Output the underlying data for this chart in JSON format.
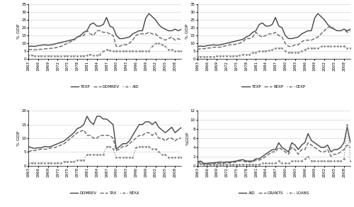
{
  "years": [
    1963,
    1964,
    1965,
    1966,
    1967,
    1968,
    1969,
    1970,
    1971,
    1972,
    1973,
    1974,
    1975,
    1976,
    1977,
    1978,
    1979,
    1980,
    1981,
    1982,
    1983,
    1984,
    1985,
    1986,
    1987,
    1988,
    1989,
    1990,
    1991,
    1992,
    1993,
    1994,
    1995,
    1996,
    1997,
    1998,
    1999,
    2000,
    2001,
    2002,
    2003,
    2004,
    2005,
    2006,
    2007,
    2008,
    2009,
    2010
  ],
  "TEXP": [
    8.0,
    8.2,
    8.0,
    8.5,
    8.8,
    9.0,
    8.8,
    9.0,
    9.5,
    10.0,
    10.5,
    11.0,
    11.5,
    12.0,
    12.5,
    14.0,
    15.0,
    17.0,
    18.0,
    22.0,
    23.0,
    21.0,
    21.0,
    22.0,
    26.5,
    21.0,
    20.0,
    15.0,
    13.0,
    13.0,
    13.5,
    14.0,
    16.0,
    17.0,
    18.0,
    18.0,
    26.0,
    29.0,
    27.0,
    25.0,
    22.0,
    20.0,
    19.0,
    18.0,
    18.0,
    19.0,
    18.0,
    19.0
  ],
  "DOMREV": [
    6.0,
    6.0,
    5.8,
    6.0,
    6.2,
    6.5,
    6.5,
    6.8,
    7.0,
    7.5,
    8.0,
    9.0,
    10.0,
    11.0,
    12.0,
    14.0,
    14.5,
    15.0,
    18.0,
    16.0,
    15.0,
    18.0,
    18.0,
    17.0,
    17.0,
    16.0,
    15.0,
    8.0,
    8.0,
    9.0,
    9.0,
    10.0,
    12.0,
    15.0,
    16.0,
    16.0,
    16.0,
    17.0,
    16.0,
    16.0,
    14.0,
    13.0,
    12.0,
    13.0,
    14.0,
    12.0,
    13.0,
    12.0
  ],
  "AID": [
    2.5,
    2.5,
    2.0,
    2.0,
    2.0,
    2.0,
    2.0,
    2.0,
    1.8,
    1.8,
    1.8,
    2.0,
    2.0,
    2.0,
    2.0,
    2.0,
    2.0,
    2.0,
    2.5,
    3.0,
    2.5,
    2.5,
    3.0,
    5.0,
    6.0,
    5.5,
    5.0,
    5.0,
    5.0,
    5.0,
    5.0,
    5.0,
    5.0,
    5.0,
    5.0,
    5.0,
    5.0,
    5.0,
    8.0,
    10.0,
    10.0,
    9.0,
    8.0,
    6.0,
    6.0,
    5.0,
    5.0,
    5.0
  ],
  "REXP": [
    6.0,
    6.5,
    6.5,
    7.0,
    7.0,
    7.5,
    7.5,
    7.5,
    8.0,
    8.5,
    9.0,
    9.0,
    9.5,
    10.0,
    11.0,
    13.0,
    13.0,
    14.0,
    17.0,
    15.0,
    14.0,
    15.0,
    16.0,
    16.0,
    17.0,
    15.0,
    14.0,
    10.0,
    8.0,
    8.0,
    9.0,
    9.0,
    11.0,
    12.0,
    12.0,
    12.0,
    13.0,
    14.0,
    16.0,
    18.0,
    20.0,
    21.0,
    19.0,
    18.0,
    18.0,
    19.0,
    17.0,
    18.0
  ],
  "CEXP": [
    1.5,
    1.5,
    1.5,
    1.5,
    1.5,
    1.5,
    1.8,
    1.8,
    2.0,
    2.0,
    2.0,
    2.0,
    2.0,
    2.5,
    3.0,
    3.0,
    3.0,
    4.0,
    4.0,
    5.0,
    5.0,
    5.0,
    5.5,
    6.0,
    7.0,
    7.0,
    7.0,
    5.0,
    4.0,
    4.0,
    4.0,
    4.0,
    5.0,
    6.0,
    7.0,
    7.0,
    7.0,
    7.0,
    8.0,
    8.0,
    8.0,
    8.0,
    8.0,
    8.0,
    8.0,
    8.0,
    7.0,
    7.0
  ],
  "DOMREV2": [
    7.0,
    6.5,
    6.3,
    6.5,
    6.5,
    7.0,
    6.8,
    7.0,
    7.5,
    8.0,
    8.5,
    9.0,
    10.0,
    11.0,
    12.0,
    13.5,
    14.0,
    15.0,
    18.0,
    16.0,
    15.0,
    18.0,
    18.0,
    17.0,
    17.0,
    16.0,
    15.0,
    6.0,
    7.0,
    8.0,
    8.0,
    9.0,
    11.0,
    13.0,
    15.0,
    15.0,
    16.0,
    16.0,
    15.0,
    16.0,
    14.0,
    13.0,
    12.0,
    13.0,
    14.0,
    12.0,
    13.0,
    14.0
  ],
  "TAX": [
    5.0,
    5.5,
    5.5,
    5.8,
    6.0,
    6.0,
    6.0,
    6.5,
    6.5,
    7.0,
    7.5,
    8.0,
    9.0,
    10.0,
    11.0,
    12.0,
    12.5,
    13.0,
    11.0,
    11.0,
    10.0,
    10.0,
    11.0,
    11.0,
    11.0,
    11.0,
    10.0,
    5.5,
    6.0,
    7.0,
    7.0,
    8.0,
    9.0,
    10.0,
    11.0,
    11.0,
    12.0,
    12.0,
    11.0,
    12.0,
    10.0,
    10.0,
    9.0,
    10.0,
    10.0,
    9.0,
    10.0,
    10.0
  ],
  "NTAX": [
    1.0,
    1.0,
    1.0,
    1.0,
    1.0,
    1.0,
    1.0,
    1.0,
    1.0,
    1.0,
    1.0,
    1.5,
    1.5,
    1.5,
    1.5,
    2.0,
    2.0,
    2.0,
    4.0,
    4.0,
    4.0,
    4.0,
    4.0,
    4.0,
    7.0,
    7.0,
    6.0,
    3.0,
    3.0,
    3.0,
    3.0,
    3.0,
    3.0,
    6.5,
    7.0,
    7.0,
    7.0,
    7.0,
    6.0,
    6.0,
    5.0,
    4.0,
    4.0,
    3.0,
    3.0,
    3.0,
    3.0,
    3.0
  ],
  "AID2": [
    0.8,
    1.0,
    0.5,
    0.5,
    0.6,
    0.6,
    0.7,
    0.8,
    0.7,
    0.8,
    0.8,
    0.9,
    1.0,
    1.2,
    1.3,
    1.0,
    1.0,
    1.0,
    1.5,
    1.5,
    2.0,
    2.5,
    3.0,
    3.5,
    3.5,
    5.0,
    4.0,
    3.5,
    3.0,
    5.0,
    4.5,
    3.5,
    4.5,
    5.0,
    7.0,
    5.5,
    5.0,
    4.5,
    4.0,
    4.0,
    4.5,
    3.0,
    3.5,
    3.5,
    4.0,
    5.0,
    8.5,
    5.0
  ],
  "GRANTS": [
    0.5,
    0.7,
    0.3,
    0.3,
    0.4,
    0.4,
    0.5,
    0.5,
    0.5,
    0.6,
    0.6,
    0.7,
    0.8,
    1.0,
    1.0,
    0.8,
    0.8,
    0.8,
    1.2,
    1.2,
    1.5,
    2.0,
    2.5,
    3.0,
    3.0,
    4.0,
    3.5,
    3.0,
    2.5,
    4.0,
    3.5,
    2.5,
    3.5,
    3.5,
    5.0,
    4.5,
    4.0,
    3.5,
    3.0,
    3.0,
    3.5,
    2.0,
    2.5,
    2.5,
    3.0,
    3.5,
    4.5,
    4.0
  ],
  "LOANS": [
    0.3,
    0.4,
    0.2,
    0.2,
    0.2,
    0.2,
    0.2,
    0.3,
    0.2,
    0.2,
    0.2,
    0.2,
    0.2,
    0.2,
    0.3,
    0.2,
    0.2,
    0.2,
    0.3,
    0.3,
    0.5,
    0.5,
    0.5,
    0.5,
    0.5,
    1.0,
    0.5,
    0.5,
    0.5,
    1.0,
    1.0,
    1.0,
    1.0,
    1.5,
    2.0,
    1.0,
    1.0,
    1.0,
    1.0,
    1.0,
    1.0,
    1.0,
    1.0,
    1.0,
    1.0,
    1.5,
    9.0,
    1.0
  ],
  "bg_color": "#ffffff",
  "grid_color": "#cccccc"
}
